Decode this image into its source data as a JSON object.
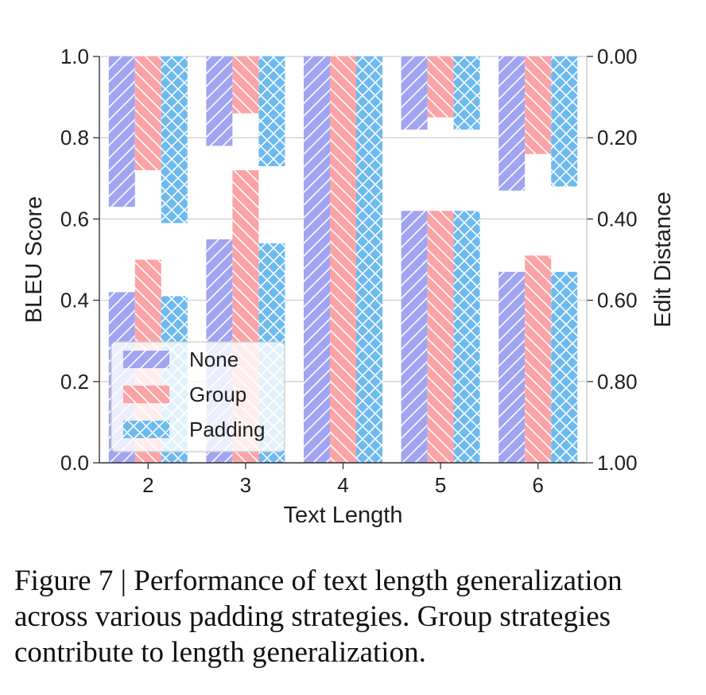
{
  "figure": {
    "caption": "Figure 7 | Performance of text length generalization across various padding strategies. Group strategies contribute to length generalization."
  },
  "chart_data": {
    "type": "bar",
    "xlabel": "Text Length",
    "ylabel": "BLEU Score",
    "y2label": "Edit Distance",
    "categories": [
      "2",
      "3",
      "4",
      "5",
      "6"
    ],
    "ylim": [
      0,
      1
    ],
    "y2lim": [
      0,
      1
    ],
    "y2_inverted": true,
    "y_ticks": [
      "0.0",
      "0.2",
      "0.4",
      "0.6",
      "0.8",
      "1.0"
    ],
    "y2_ticks": [
      "0.00",
      "0.20",
      "0.40",
      "0.60",
      "0.80",
      "1.00"
    ],
    "grid": true,
    "legend_position": "lower-left",
    "series": [
      {
        "name": "None",
        "color": "#a1a4f2",
        "hatch": "diagonal",
        "bleu": [
          0.42,
          0.55,
          1.0,
          0.62,
          0.47
        ],
        "edit_distance": [
          0.37,
          0.22,
          1.0,
          0.18,
          0.33
        ]
      },
      {
        "name": "Group",
        "color": "#fca3a6",
        "hatch": "back-diagonal",
        "bleu": [
          0.5,
          0.72,
          1.0,
          0.62,
          0.51
        ],
        "edit_distance": [
          0.28,
          0.14,
          1.0,
          0.15,
          0.24
        ]
      },
      {
        "name": "Padding",
        "color": "#6cbaf0",
        "hatch": "crosshatch",
        "bleu": [
          0.41,
          0.54,
          1.0,
          0.62,
          0.47
        ],
        "edit_distance": [
          0.41,
          0.27,
          1.0,
          0.18,
          0.32
        ]
      }
    ]
  }
}
